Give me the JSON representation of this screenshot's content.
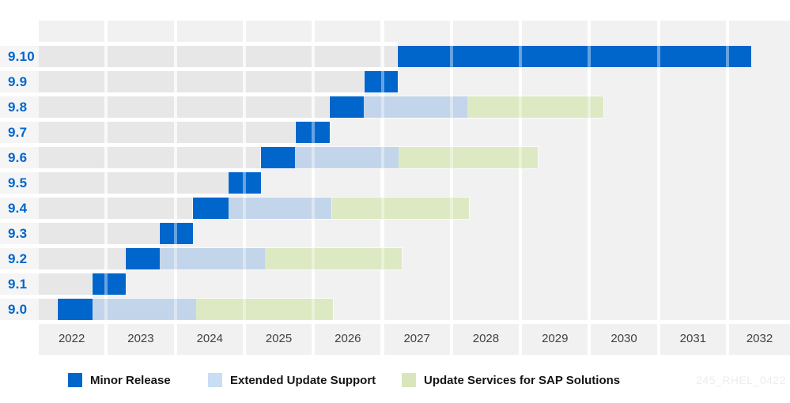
{
  "figure": {
    "watermark": "245_RHEL_0422"
  },
  "legend": {
    "items": [
      {
        "series": "minor",
        "label": "Minor Release",
        "color": "#0066cc"
      },
      {
        "series": "eus",
        "label": "Extended Update Support",
        "color": "#c9ddf4"
      },
      {
        "series": "sap",
        "label": "Update Services for SAP Solutions",
        "color": "#d9e6bc"
      }
    ]
  },
  "colors": {
    "minor": "#0066cc",
    "eus": "#c3d5ea",
    "sap": "#dde9c2",
    "row_label_text": "#0066cc",
    "axis_text": "#3f4144",
    "column_fill": "#f1f1f2",
    "watermark_text": "#efeceb"
  },
  "chart_data": {
    "type": "gantt",
    "orientation": "horizontal",
    "grid": true,
    "legend_position": "bottom",
    "x_ticks": [
      "2022",
      "2023",
      "2024",
      "2025",
      "2026",
      "2027",
      "2028",
      "2029",
      "2030",
      "2031",
      "2032"
    ],
    "x_range_start": 2022,
    "x_range_end": 2032.93,
    "rows": [
      {
        "label": "9.10",
        "segments": [
          {
            "series": "minor",
            "start": 2027.25,
            "end": 2032.37
          }
        ]
      },
      {
        "label": "9.9",
        "segments": [
          {
            "series": "minor",
            "start": 2026.76,
            "end": 2027.25
          }
        ]
      },
      {
        "label": "9.8",
        "segments": [
          {
            "series": "minor",
            "start": 2026.26,
            "end": 2026.75
          },
          {
            "series": "eus",
            "start": 2026.75,
            "end": 2028.26
          },
          {
            "series": "sap",
            "start": 2028.26,
            "end": 2030.23
          }
        ]
      },
      {
        "label": "9.7",
        "segments": [
          {
            "series": "minor",
            "start": 2025.77,
            "end": 2026.26
          }
        ]
      },
      {
        "label": "9.6",
        "segments": [
          {
            "series": "minor",
            "start": 2025.27,
            "end": 2025.76
          },
          {
            "series": "eus",
            "start": 2025.76,
            "end": 2027.26
          },
          {
            "series": "sap",
            "start": 2027.26,
            "end": 2029.27
          }
        ]
      },
      {
        "label": "9.5",
        "segments": [
          {
            "series": "minor",
            "start": 2024.79,
            "end": 2025.27
          }
        ]
      },
      {
        "label": "9.4",
        "segments": [
          {
            "series": "minor",
            "start": 2024.28,
            "end": 2024.79
          },
          {
            "series": "eus",
            "start": 2024.79,
            "end": 2026.29
          },
          {
            "series": "sap",
            "start": 2026.29,
            "end": 2028.28
          }
        ]
      },
      {
        "label": "9.3",
        "segments": [
          {
            "series": "minor",
            "start": 2023.8,
            "end": 2024.28
          }
        ]
      },
      {
        "label": "9.2",
        "segments": [
          {
            "series": "minor",
            "start": 2023.31,
            "end": 2023.8
          },
          {
            "series": "eus",
            "start": 2023.8,
            "end": 2025.32
          },
          {
            "series": "sap",
            "start": 2025.32,
            "end": 2027.3
          }
        ]
      },
      {
        "label": "9.1",
        "segments": [
          {
            "series": "minor",
            "start": 2022.82,
            "end": 2023.31
          }
        ]
      },
      {
        "label": "9.0",
        "segments": [
          {
            "series": "minor",
            "start": 2022.32,
            "end": 2022.82
          },
          {
            "series": "eus",
            "start": 2022.82,
            "end": 2024.33
          },
          {
            "series": "sap",
            "start": 2024.33,
            "end": 2026.31
          }
        ]
      }
    ]
  }
}
